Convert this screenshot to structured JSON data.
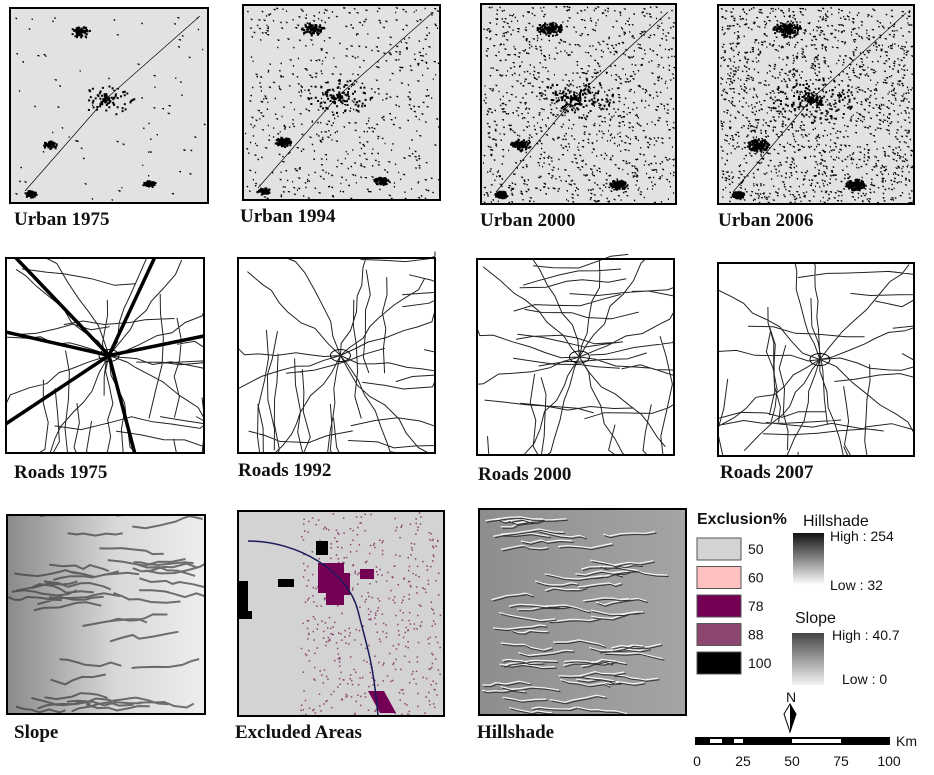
{
  "panels": [
    {
      "label": "Urban 1975"
    },
    {
      "label": "Urban 1994"
    },
    {
      "label": "Urban 2000"
    },
    {
      "label": "Urban 2006"
    },
    {
      "label": "Roads 1975"
    },
    {
      "label": "Roads 1992"
    },
    {
      "label": "Roads 2000"
    },
    {
      "label": "Roads 2007"
    },
    {
      "label": "Slope"
    },
    {
      "label": "Excluded Areas"
    },
    {
      "label": "Hillshade"
    }
  ],
  "exclusion_legend": {
    "title": "Exclusion%",
    "items": [
      {
        "label": "50",
        "color": "#d3d3d3"
      },
      {
        "label": "60",
        "color": "#ffc0c0"
      },
      {
        "label": "78",
        "color": "#730055"
      },
      {
        "label": "88",
        "color": "#8c4670"
      },
      {
        "label": "100",
        "color": "#000000"
      }
    ]
  },
  "hillshade_legend": {
    "title": "Hillshade",
    "high": "High : 254",
    "low": "Low : 32"
  },
  "slope_legend": {
    "title": "Slope",
    "high": "High : 40.7",
    "low": "Low : 0"
  },
  "north": "N",
  "scale_bar": {
    "ticks": [
      "0",
      "25",
      "50",
      "75",
      "100"
    ],
    "unit": "Km"
  }
}
